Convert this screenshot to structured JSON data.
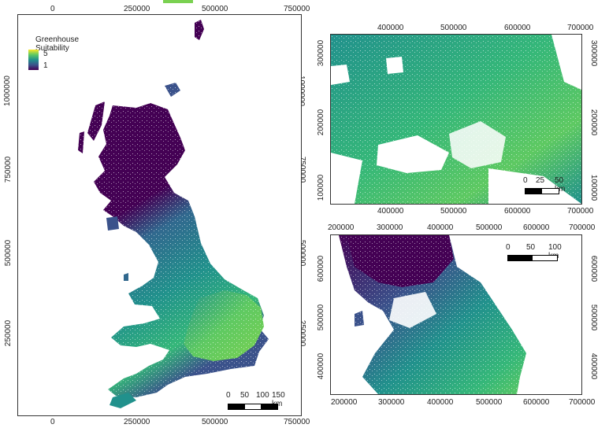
{
  "legend": {
    "title": "Greenhouse Suitability",
    "max_label": "5",
    "min_label": "1",
    "colors": [
      "#fde725",
      "#5ec962",
      "#21918c",
      "#3b528b",
      "#440154"
    ]
  },
  "palette": {
    "high": "#7ad151",
    "midhigh": "#35b779",
    "mid": "#21918c",
    "midlow": "#31688e",
    "low": "#443a83",
    "lowest": "#440154",
    "top_strip": "#7ad151"
  },
  "main_map": {
    "x_ticks": [
      "0",
      "250000",
      "500000",
      "750000"
    ],
    "y_ticks": [
      "1000000",
      "750000",
      "500000",
      "250000"
    ],
    "scale": {
      "labels": [
        "0",
        "50",
        "100",
        "150 km"
      ]
    }
  },
  "top_right_map": {
    "x_ticks": [
      "400000",
      "500000",
      "600000",
      "700000"
    ],
    "y_ticks": [
      "300000",
      "200000",
      "100000"
    ],
    "scale": {
      "labels": [
        "0",
        "25",
        "50 km"
      ]
    }
  },
  "bottom_right_map": {
    "x_ticks": [
      "200000",
      "300000",
      "400000",
      "500000",
      "600000",
      "700000"
    ],
    "y_ticks": [
      "600000",
      "500000",
      "400000"
    ],
    "scale": {
      "labels": [
        "0",
        "50",
        "100 km"
      ]
    }
  }
}
